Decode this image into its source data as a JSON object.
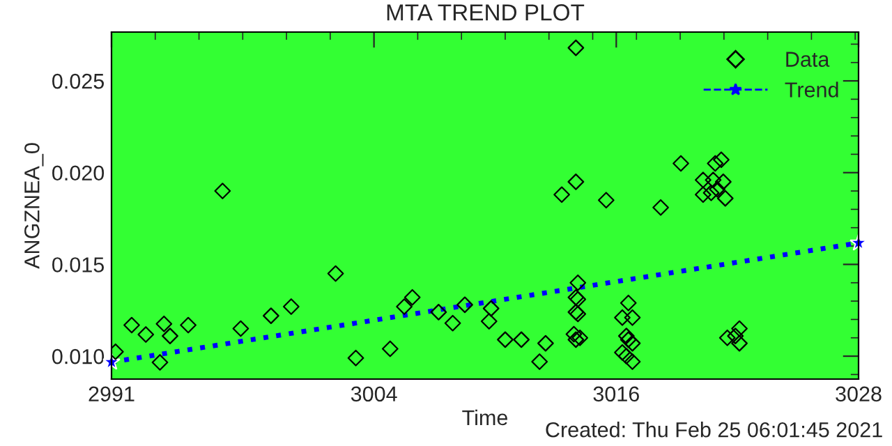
{
  "chart_data": {
    "type": "scatter",
    "title": "MTA TREND PLOT",
    "xlabel": "Time",
    "ylabel": "ANGZNEA_0",
    "xlim": [
      2991,
      3028
    ],
    "ylim": [
      0.00875,
      0.02766
    ],
    "xticks": [
      2991,
      3004,
      3016,
      3028
    ],
    "yticks": [
      {
        "value": 0.01,
        "label": "0.010"
      },
      {
        "value": 0.015,
        "label": "0.015"
      },
      {
        "value": 0.02,
        "label": "0.020"
      },
      {
        "value": 0.025,
        "label": "0.025"
      }
    ],
    "grid": false,
    "legend": "top right",
    "marker": "diamond",
    "annotations": [
      "Created: Thu Feb 25 06:01:45 2021"
    ],
    "series": [
      {
        "name": "Data",
        "color": "#000000",
        "x": [
          2991.2,
          2992.0,
          2992.7,
          2993.4,
          2993.6,
          2993.9,
          2994.8,
          2996.5,
          2997.4,
          2998.9,
          2999.9,
          3002.1,
          3003.1,
          3004.8,
          3005.5,
          3005.9,
          3007.2,
          3007.9,
          3008.5,
          3009.8,
          3009.7,
          3010.5,
          3011.3,
          3012.5,
          3012.2,
          3013.3,
          3014.0,
          3014.0,
          3014.1,
          3014.0,
          3014.1,
          3014.0,
          3014.1,
          3013.9,
          3014.2,
          3014.0,
          3015.5,
          3016.6,
          3016.3,
          3016.8,
          3016.5,
          3016.6,
          3016.8,
          3016.3,
          3016.5,
          3016.8,
          3018.2,
          3019.2,
          3020.9,
          3021.2,
          3020.3,
          3020.8,
          3021.3,
          3020.3,
          3020.7,
          3021.0,
          3021.4,
          3021.5,
          3022.1,
          3021.9,
          3022.1
        ],
        "values": [
          0.01024,
          0.01169,
          0.01118,
          0.00966,
          0.01176,
          0.0111,
          0.01169,
          0.019,
          0.0115,
          0.0122,
          0.0127,
          0.0145,
          0.0099,
          0.0104,
          0.0127,
          0.0132,
          0.0124,
          0.0118,
          0.0128,
          0.0126,
          0.0119,
          0.0109,
          0.0109,
          0.0107,
          0.0097,
          0.0188,
          0.0268,
          0.0195,
          0.014,
          0.0132,
          0.0131,
          0.0124,
          0.0123,
          0.0112,
          0.011,
          0.0109,
          0.0185,
          0.0129,
          0.0121,
          0.0121,
          0.0111,
          0.0109,
          0.0107,
          0.0102,
          0.01,
          0.0097,
          0.0181,
          0.0205,
          0.0205,
          0.0207,
          0.0196,
          0.0196,
          0.0195,
          0.0188,
          0.0189,
          0.0191,
          0.0186,
          0.011,
          0.0115,
          0.0111,
          0.0107
        ]
      },
      {
        "name": "Trend",
        "type": "line",
        "color": "#0000ff",
        "line_style": "dotted",
        "marker": "star",
        "x": [
          2991,
          3028
        ],
        "values": [
          0.00968,
          0.01617
        ]
      }
    ]
  }
}
